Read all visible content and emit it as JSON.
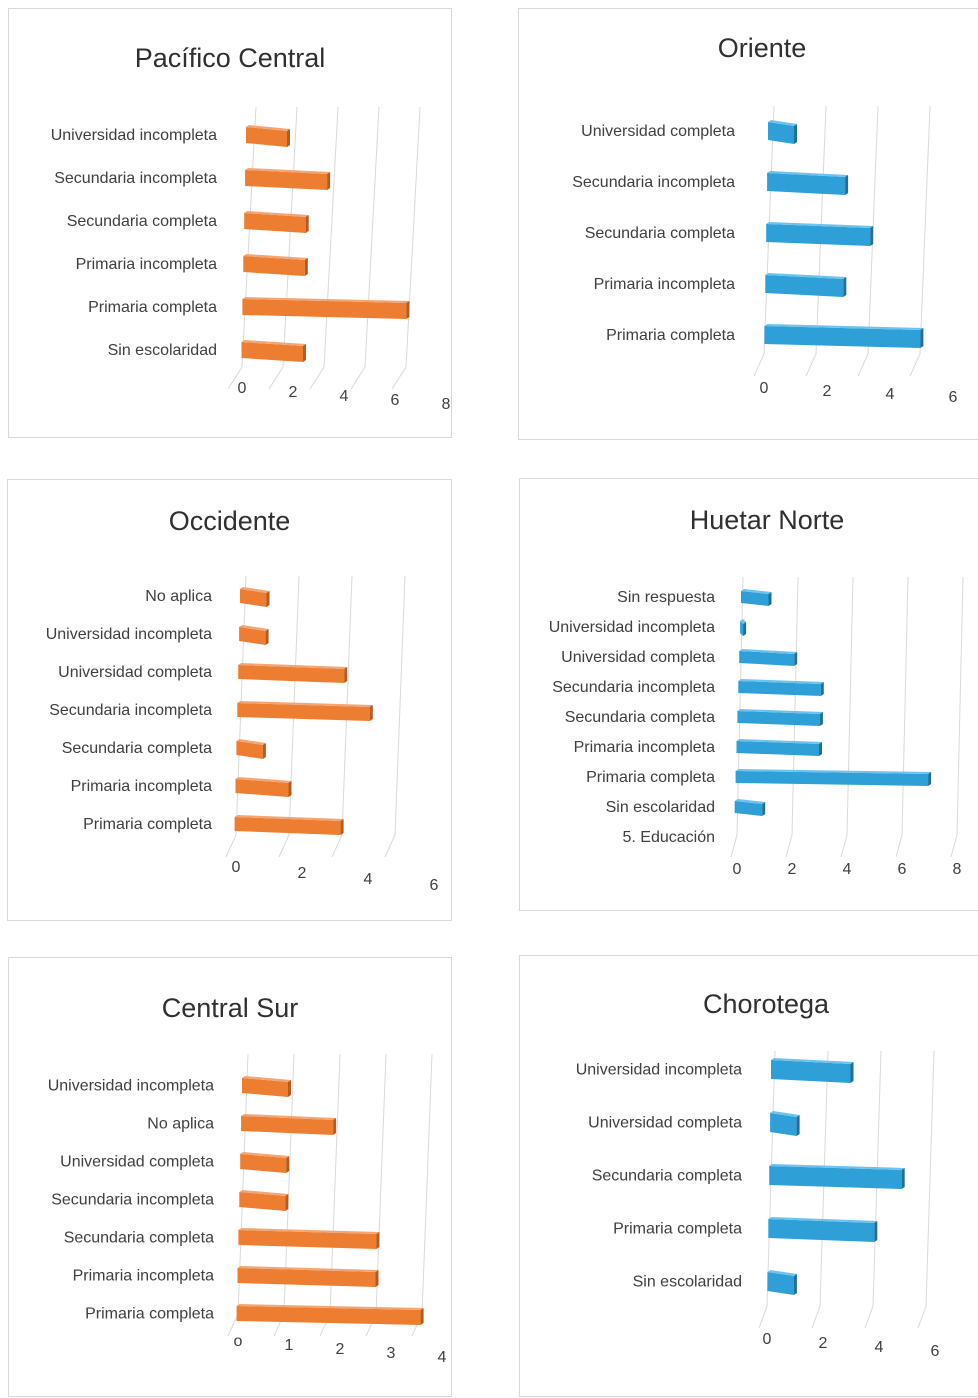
{
  "charts": [
    {
      "title": "Pacífico Central",
      "categories": [
        "Universidad incompleta",
        "Secundaria incompleta",
        "Secundaria completa",
        "Primaria incompleta",
        "Primaria completa",
        "Sin escolaridad"
      ],
      "values": [
        2,
        4,
        3,
        3,
        8,
        3
      ],
      "ticks": [
        "0",
        "2",
        "4",
        "6",
        "8"
      ],
      "xmax": 8,
      "colors": {
        "front": "#ed7d31",
        "top": "#f4a574",
        "side": "#b85a1c"
      }
    },
    {
      "title": "Oriente",
      "categories": [
        "Universidad completa",
        "Secundaria incompleta",
        "Secundaria completa",
        "Primaria incompleta",
        "Primaria completa"
      ],
      "values": [
        1,
        3,
        4,
        3,
        6
      ],
      "ticks": [
        "0",
        "2",
        "4",
        "6"
      ],
      "xmax": 6,
      "colors": {
        "front": "#2f9fd8",
        "top": "#6cc3ee",
        "side": "#1f6f9d"
      }
    },
    {
      "title": "Occidente",
      "categories": [
        "No aplica",
        "Universidad incompleta",
        "Universidad completa",
        "Secundaria incompleta",
        "Secundaria completa",
        "Primaria incompleta",
        "Primaria completa"
      ],
      "values": [
        1,
        1,
        4,
        5,
        1,
        2,
        4
      ],
      "ticks": [
        "0",
        "2",
        "4",
        "6"
      ],
      "xmax": 6,
      "colors": {
        "front": "#ed7d31",
        "top": "#f4a574",
        "side": "#b85a1c"
      }
    },
    {
      "title": "Huetar Norte",
      "categories": [
        "Sin respuesta",
        "Universidad incompleta",
        "Universidad completa",
        "Secundaria incompleta",
        "Secundaria completa",
        "Primaria incompleta",
        "Primaria completa",
        "Sin escolaridad",
        "5. Educación"
      ],
      "values": [
        1,
        0,
        2,
        3,
        3,
        3,
        7,
        1,
        0
      ],
      "ticks": [
        "0",
        "2",
        "4",
        "6",
        "8"
      ],
      "xmax": 8,
      "colors": {
        "front": "#2f9fd8",
        "top": "#6cc3ee",
        "side": "#1f6f9d"
      }
    },
    {
      "title": "Central Sur",
      "categories": [
        "Universidad incompleta",
        "No aplica",
        "Universidad completa",
        "Secundaria incompleta",
        "Secundaria completa",
        "Primaria incompleta",
        "Primaria completa"
      ],
      "values": [
        1,
        2,
        1,
        1,
        3,
        3,
        4
      ],
      "ticks": [
        "o",
        "1",
        "2",
        "3",
        "4"
      ],
      "xmax": 4,
      "colors": {
        "front": "#ed7d31",
        "top": "#f4a574",
        "side": "#b85a1c"
      }
    },
    {
      "title": "Chorotega",
      "categories": [
        "Universidad incompleta",
        "Universidad completa",
        "Secundaria completa",
        "Primaria completa",
        "Sin escolaridad"
      ],
      "values": [
        3,
        1,
        5,
        4,
        1
      ],
      "ticks": [
        "0",
        "2",
        "4",
        "6"
      ],
      "xmax": 6,
      "colors": {
        "front": "#2f9fd8",
        "top": "#6cc3ee",
        "side": "#1f6f9d"
      }
    }
  ],
  "chart_data": [
    {
      "type": "bar",
      "title": "Pacífico Central",
      "orientation": "horizontal-3d",
      "categories": [
        "Universidad incompleta",
        "Secundaria incompleta",
        "Secundaria completa",
        "Primaria incompleta",
        "Primaria completa",
        "Sin escolaridad"
      ],
      "values": [
        2,
        4,
        3,
        3,
        8,
        3
      ],
      "xlim": [
        0,
        8
      ],
      "grid": true
    },
    {
      "type": "bar",
      "title": "Oriente",
      "orientation": "horizontal-3d",
      "categories": [
        "Universidad completa",
        "Secundaria incompleta",
        "Secundaria completa",
        "Primaria incompleta",
        "Primaria completa"
      ],
      "values": [
        1,
        3,
        4,
        3,
        6
      ],
      "xlim": [
        0,
        6
      ],
      "grid": true
    },
    {
      "type": "bar",
      "title": "Occidente",
      "orientation": "horizontal-3d",
      "categories": [
        "No aplica",
        "Universidad incompleta",
        "Universidad completa",
        "Secundaria incompleta",
        "Secundaria completa",
        "Primaria incompleta",
        "Primaria completa"
      ],
      "values": [
        1,
        1,
        4,
        5,
        1,
        2,
        4
      ],
      "xlim": [
        0,
        6
      ],
      "grid": true
    },
    {
      "type": "bar",
      "title": "Huetar Norte",
      "orientation": "horizontal-3d",
      "categories": [
        "Sin respuesta",
        "Universidad incompleta",
        "Universidad completa",
        "Secundaria incompleta",
        "Secundaria completa",
        "Primaria incompleta",
        "Primaria completa",
        "Sin escolaridad",
        "5. Educación"
      ],
      "values": [
        1,
        0,
        2,
        3,
        3,
        3,
        7,
        1,
        0
      ],
      "xlim": [
        0,
        8
      ],
      "grid": true
    },
    {
      "type": "bar",
      "title": "Central Sur",
      "orientation": "horizontal-3d",
      "categories": [
        "Universidad incompleta",
        "No aplica",
        "Universidad completa",
        "Secundaria incompleta",
        "Secundaria completa",
        "Primaria incompleta",
        "Primaria completa"
      ],
      "values": [
        1,
        2,
        1,
        1,
        3,
        3,
        4
      ],
      "xlim": [
        0,
        4
      ],
      "grid": true
    },
    {
      "type": "bar",
      "title": "Chorotega",
      "orientation": "horizontal-3d",
      "categories": [
        "Universidad incompleta",
        "Universidad completa",
        "Secundaria completa",
        "Primaria completa",
        "Sin escolaridad"
      ],
      "values": [
        3,
        1,
        5,
        4,
        1
      ],
      "xlim": [
        0,
        6
      ],
      "grid": true
    }
  ]
}
